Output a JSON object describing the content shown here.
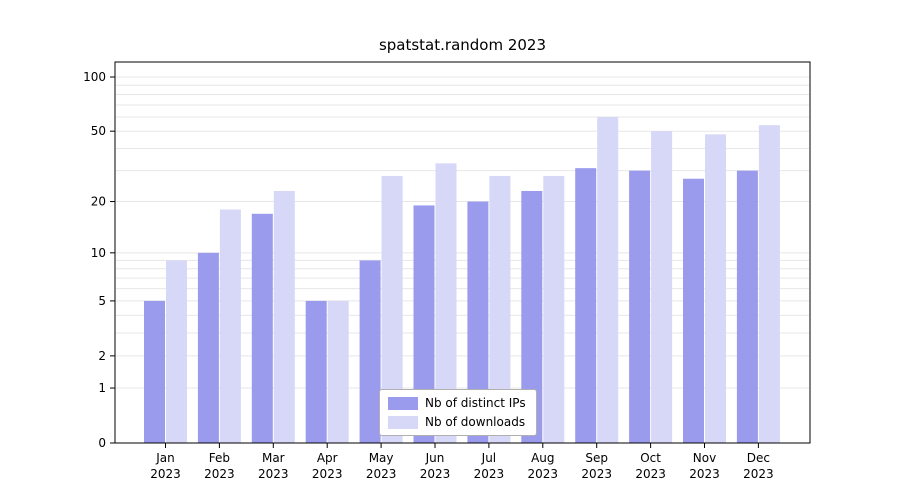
{
  "chart_data": {
    "type": "bar",
    "title": "spatstat.random 2023",
    "year_label": "2023",
    "categories": [
      "Jan",
      "Feb",
      "Mar",
      "Apr",
      "May",
      "Jun",
      "Jul",
      "Aug",
      "Sep",
      "Oct",
      "Nov",
      "Dec"
    ],
    "series": [
      {
        "name": "Nb of distinct IPs",
        "color": "#9b9bee",
        "values": [
          5,
          10,
          17,
          5,
          9,
          19,
          20,
          23,
          31,
          30,
          27,
          30
        ]
      },
      {
        "name": "Nb of downloads",
        "color": "#d7d7f8",
        "values": [
          9,
          18,
          23,
          5,
          28,
          33,
          28,
          28,
          60,
          50,
          48,
          54
        ]
      }
    ],
    "yscale": "log1p",
    "yticks": [
      0,
      1,
      2,
      5,
      10,
      20,
      50,
      100
    ],
    "gridlines": [
      1,
      2,
      3,
      4,
      5,
      6,
      7,
      8,
      9,
      10,
      20,
      30,
      40,
      50,
      60,
      70,
      80,
      90,
      100
    ],
    "grid_color": "#e7e7e7",
    "axis_color": "#000000",
    "legend_position": "bottom-center",
    "ylim_top": 100
  }
}
